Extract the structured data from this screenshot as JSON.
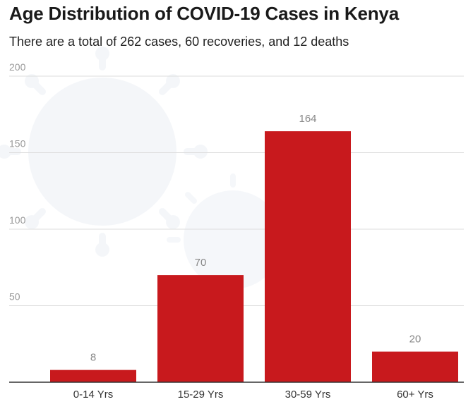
{
  "title": "Age Distribution of COVID-19 Cases in Kenya",
  "subtitle": "There are a total of 262 cases, 60 recoveries, and 12 deaths",
  "chart_data": {
    "type": "bar",
    "title": "Age Distribution of COVID-19 Cases in Kenya",
    "subtitle": "There are a total of 262 cases, 60 recoveries, and 12 deaths",
    "categories": [
      "0-14 Yrs",
      "15-29 Yrs",
      "30-59 Yrs",
      "60+ Yrs"
    ],
    "values": [
      8,
      70,
      164,
      20
    ],
    "data_labels": [
      "8",
      "70",
      "164",
      "20"
    ],
    "xlabel": "",
    "ylabel": "",
    "ylim": [
      0,
      200
    ],
    "yticks": [
      50,
      100,
      150,
      200
    ],
    "ytick_labels": [
      "50",
      "100",
      "150",
      "200"
    ],
    "grid": true,
    "legend": "none",
    "bar_color": "#c8191d",
    "grid_color": "#dddddd",
    "tick_label_color": "#999999",
    "data_label_color": "#888888"
  }
}
